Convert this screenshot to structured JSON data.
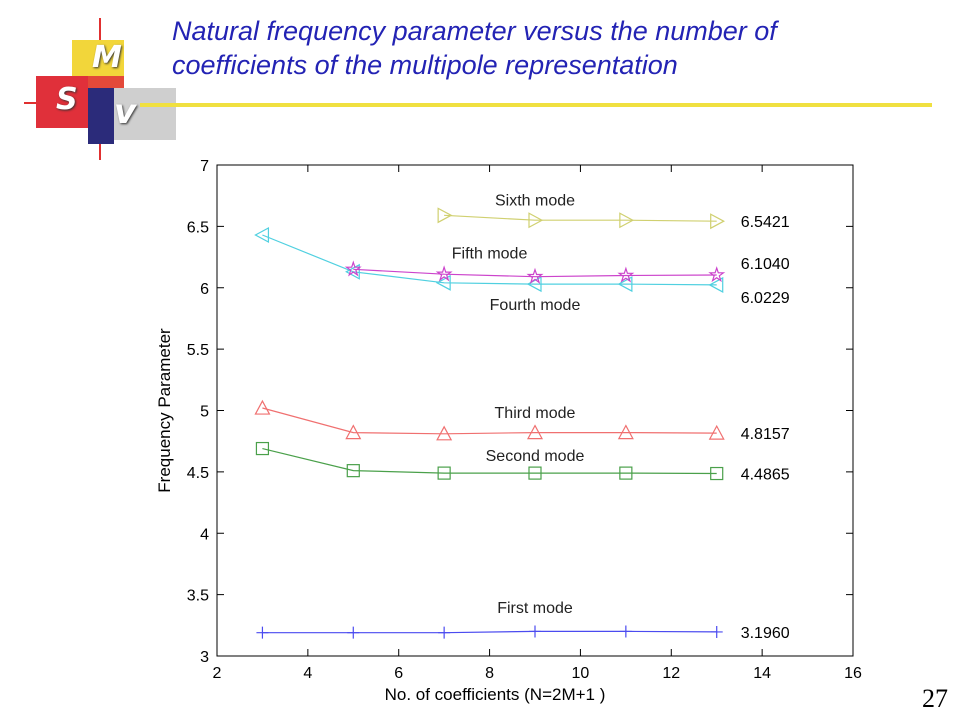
{
  "slide": {
    "title_line1": "Natural frequency parameter versus the number of",
    "title_line2": "coefficients of the multipole representation",
    "page_number": "27"
  },
  "logo": {
    "letters": [
      "M",
      "S",
      "V"
    ],
    "colors": {
      "yellow": "#f2d63a",
      "red": "#e0303a",
      "navy": "#2b2b7a",
      "gray": "#cfcfcf"
    }
  },
  "chart_data": {
    "type": "line",
    "title": "",
    "xlabel": "No. of coefficients (N=2M+1 )",
    "ylabel": "Frequency Parameter",
    "xlim": [
      2,
      16
    ],
    "ylim": [
      3,
      7
    ],
    "xticks": [
      2,
      4,
      6,
      8,
      10,
      12,
      14,
      16
    ],
    "yticks": [
      3,
      3.5,
      4,
      4.5,
      5,
      5.5,
      6,
      6.5,
      7
    ],
    "ytick_labels": [
      "3",
      "3.5",
      "4",
      "4.5",
      "5",
      "5.5",
      "6",
      "6.5",
      "7"
    ],
    "grid": false,
    "series": [
      {
        "name": "First mode",
        "color": "#4b4bf0",
        "marker": "plus",
        "x": [
          3,
          5,
          7,
          9,
          11,
          13
        ],
        "y": [
          3.19,
          3.19,
          3.19,
          3.2,
          3.2,
          3.196
        ],
        "end_label": "3.1960",
        "label_pos": [
          9,
          3.35
        ]
      },
      {
        "name": "Second mode",
        "color": "#4aa04a",
        "marker": "square",
        "x": [
          3,
          5,
          7,
          9,
          11,
          13
        ],
        "y": [
          4.69,
          4.51,
          4.49,
          4.49,
          4.49,
          4.4865
        ],
        "end_label": "4.4865",
        "label_pos": [
          9,
          4.59
        ]
      },
      {
        "name": "Third mode",
        "color": "#f07070",
        "marker": "triangle-up",
        "x": [
          3,
          5,
          7,
          9,
          11,
          13
        ],
        "y": [
          5.02,
          4.82,
          4.81,
          4.82,
          4.82,
          4.8157
        ],
        "end_label": "4.8157",
        "label_pos": [
          9,
          4.94
        ]
      },
      {
        "name": "Fourth mode",
        "color": "#50d0e0",
        "marker": "triangle-left",
        "x": [
          3,
          5,
          7,
          9,
          11,
          13
        ],
        "y": [
          6.43,
          6.13,
          6.04,
          6.03,
          6.03,
          6.0229
        ],
        "end_label": "6.0229",
        "label_pos": [
          9,
          5.82
        ]
      },
      {
        "name": "Fifth mode",
        "color": "#cc44cc",
        "marker": "star",
        "x": [
          5,
          7,
          9,
          11,
          13
        ],
        "y": [
          6.15,
          6.11,
          6.09,
          6.1,
          6.104
        ],
        "end_label": "6.1040",
        "label_pos": [
          8,
          6.24
        ]
      },
      {
        "name": "Sixth mode",
        "color": "#d0d070",
        "marker": "triangle-right",
        "x": [
          7,
          9,
          11,
          13
        ],
        "y": [
          6.59,
          6.55,
          6.55,
          6.5421
        ],
        "end_label": "6.5421",
        "label_pos": [
          9,
          6.67
        ]
      }
    ]
  }
}
